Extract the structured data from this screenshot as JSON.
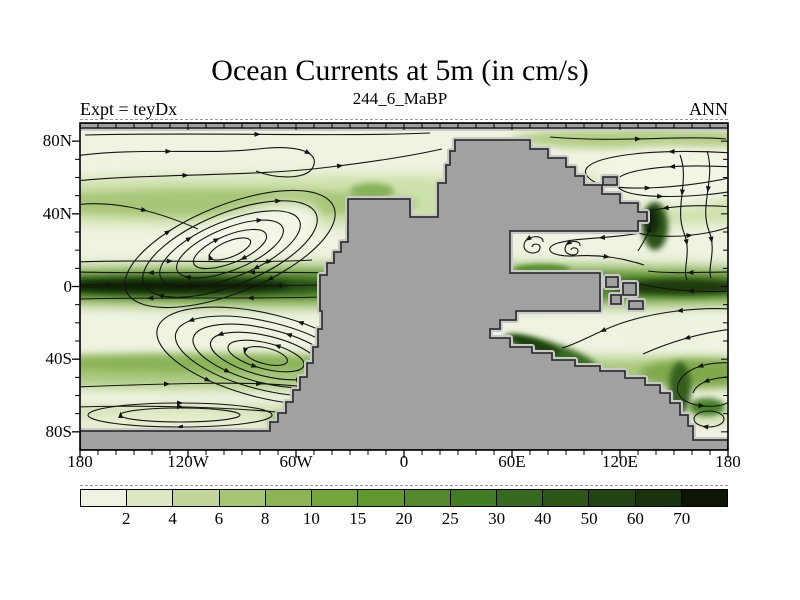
{
  "header": {
    "title": "Ocean Currents at 5m (in cm/s)",
    "subtitle": "244_6_MaBP",
    "experiment_label": "Expt = teyDx",
    "season_label": "ANN"
  },
  "chart_data": {
    "type": "heatmap",
    "subtype": "map-shaded-current-speed-with-streamlines",
    "title": "Ocean Currents at 5m (in cm/s)",
    "subtitle": "244_6_MaBP",
    "experiment": "Expt = teyDx",
    "season": "ANN",
    "units": "cm/s",
    "x_axis": {
      "range_deg": [
        -180,
        180
      ],
      "minor_tick_step_deg": 10,
      "ticks": [
        {
          "label": "180",
          "lon": -180
        },
        {
          "label": "120W",
          "lon": -120
        },
        {
          "label": "60W",
          "lon": -60
        },
        {
          "label": "0",
          "lon": 0
        },
        {
          "label": "60E",
          "lon": 60
        },
        {
          "label": "120E",
          "lon": 120
        },
        {
          "label": "180",
          "lon": 180
        }
      ]
    },
    "y_axis": {
      "range_deg": [
        -90,
        90
      ],
      "minor_tick_step_deg": 10,
      "ticks": [
        {
          "label": "80N",
          "lat": 80
        },
        {
          "label": "40N",
          "lat": 40
        },
        {
          "label": "0",
          "lat": 0
        },
        {
          "label": "40S",
          "lat": -40
        },
        {
          "label": "80S",
          "lat": -80
        }
      ]
    },
    "colorbar": {
      "boundary_labels": [
        "2",
        "4",
        "6",
        "8",
        "10",
        "15",
        "20",
        "25",
        "30",
        "40",
        "50",
        "60",
        "70"
      ],
      "levels_cm_per_s": [
        2,
        4,
        6,
        8,
        10,
        15,
        20,
        25,
        30,
        40,
        50,
        60,
        70
      ],
      "colors": [
        "#eff3e1",
        "#dce8c4",
        "#c2d69c",
        "#a7c675",
        "#8cb455",
        "#74a43c",
        "#619731",
        "#53892c",
        "#437c26",
        "#376a20",
        "#2c5719",
        "#224413",
        "#17320c",
        "#0d1507"
      ]
    },
    "land_color": "#a1a1a1",
    "coast_color": "#333333",
    "streamline_color": "#141414",
    "features_note": "Gray Pangea-like supercontinent; green shading = current speed (darkest along equatorial bands and western boundary currents); black streamlines with arrows show subtropical gyres in both hemispheres and Tethys eddies."
  }
}
